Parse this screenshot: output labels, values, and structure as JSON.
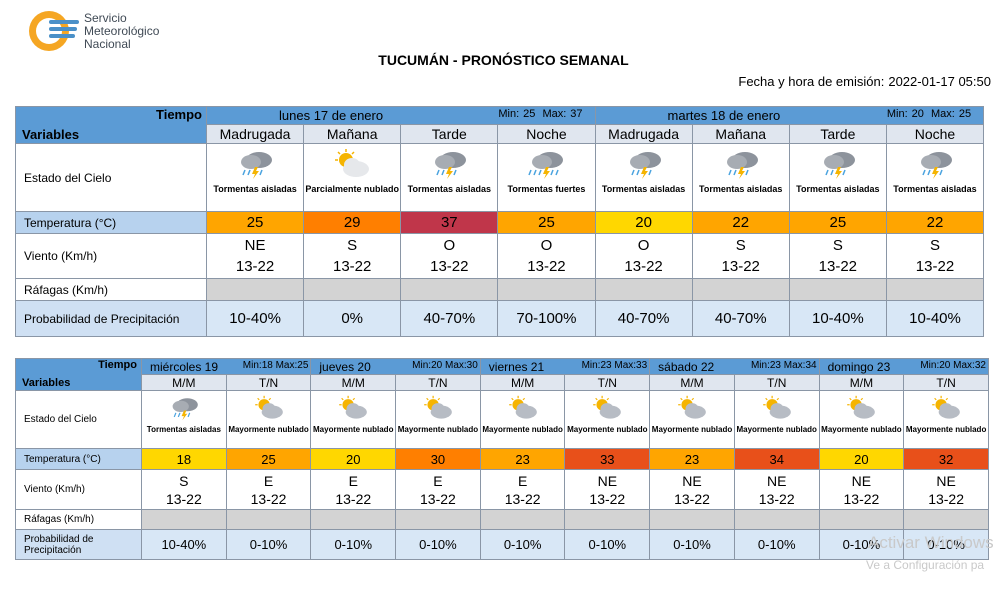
{
  "header": {
    "org_line1": "Servicio",
    "org_line2": "Meteorológico",
    "org_line3": "Nacional",
    "title": "TUCUMÁN - PRONÓSTICO SEMANAL",
    "issued_label": "Fecha y hora de emisión:",
    "issued_value": "2022-01-17 05:50"
  },
  "labels": {
    "tiempo": "Tiempo",
    "variables": "Variables",
    "sky": "Estado del Cielo",
    "temp": "Temperatura (°C)",
    "wind": "Viento (Km/h)",
    "gust": "Ráfagas (Km/h)",
    "prob": "Probabilidad de Precipitación",
    "min": "Min:",
    "max": "Max:"
  },
  "colors": {
    "t20": "#ffd700",
    "t22": "#ffa500",
    "t23": "#ffa500",
    "t25": "#ffa500",
    "t29": "#ff7f00",
    "t30": "#ff7f00",
    "t33": "#e8501a",
    "t34": "#e8501a",
    "t37": "#c0364a",
    "header": "#5b9bd5"
  },
  "week1": {
    "days": [
      {
        "name": "lunes 17 de enero",
        "min": "25",
        "max": "37",
        "periods": [
          {
            "label": "Madrugada",
            "icon": "storm-icon",
            "sky": "Tormentas aisladas",
            "temp": "25",
            "color": "#ffa500",
            "dir": "NE",
            "speed": "13-22",
            "prob": "10-40%"
          },
          {
            "label": "Mañana",
            "icon": "partly-cloudy-icon",
            "sky": "Parcialmente nublado",
            "temp": "29",
            "color": "#ff7f00",
            "dir": "S",
            "speed": "13-22",
            "prob": "0%"
          },
          {
            "label": "Tarde",
            "icon": "storm-icon",
            "sky": "Tormentas aisladas",
            "temp": "37",
            "color": "#c0364a",
            "dir": "O",
            "speed": "13-22",
            "prob": "40-70%"
          },
          {
            "label": "Noche",
            "icon": "strong-storm-icon",
            "sky": "Tormentas fuertes",
            "temp": "25",
            "color": "#ffa500",
            "dir": "O",
            "speed": "13-22",
            "prob": "70-100%"
          }
        ]
      },
      {
        "name": "martes 18 de enero",
        "min": "20",
        "max": "25",
        "periods": [
          {
            "label": "Madrugada",
            "icon": "storm-icon",
            "sky": "Tormentas aisladas",
            "temp": "20",
            "color": "#ffd700",
            "dir": "O",
            "speed": "13-22",
            "prob": "40-70%"
          },
          {
            "label": "Mañana",
            "icon": "storm-icon",
            "sky": "Tormentas aisladas",
            "temp": "22",
            "color": "#ffa500",
            "dir": "S",
            "speed": "13-22",
            "prob": "40-70%"
          },
          {
            "label": "Tarde",
            "icon": "storm-icon",
            "sky": "Tormentas aisladas",
            "temp": "25",
            "color": "#ffa500",
            "dir": "S",
            "speed": "13-22",
            "prob": "10-40%"
          },
          {
            "label": "Noche",
            "icon": "storm-icon",
            "sky": "Tormentas aisladas",
            "temp": "22",
            "color": "#ffa500",
            "dir": "S",
            "speed": "13-22",
            "prob": "10-40%"
          }
        ]
      }
    ]
  },
  "week2": {
    "days": [
      {
        "name": "miércoles 19",
        "min": "18",
        "max": "25",
        "periods": [
          {
            "label": "M/M",
            "icon": "storm-icon",
            "sky": "Tormentas aisladas",
            "temp": "18",
            "color": "#ffd700",
            "dir": "S",
            "speed": "13-22",
            "prob": "10-40%"
          },
          {
            "label": "T/N",
            "icon": "mostly-cloudy-icon",
            "sky": "Mayormente nublado",
            "temp": "25",
            "color": "#ffa500",
            "dir": "E",
            "speed": "13-22",
            "prob": "0-10%"
          }
        ]
      },
      {
        "name": "jueves 20",
        "min": "20",
        "max": "30",
        "periods": [
          {
            "label": "M/M",
            "icon": "mostly-cloudy-icon",
            "sky": "Mayormente nublado",
            "temp": "20",
            "color": "#ffd700",
            "dir": "E",
            "speed": "13-22",
            "prob": "0-10%"
          },
          {
            "label": "T/N",
            "icon": "mostly-cloudy-icon",
            "sky": "Mayormente nublado",
            "temp": "30",
            "color": "#ff7f00",
            "dir": "E",
            "speed": "13-22",
            "prob": "0-10%"
          }
        ]
      },
      {
        "name": "viernes 21",
        "min": "23",
        "max": "33",
        "periods": [
          {
            "label": "M/M",
            "icon": "mostly-cloudy-icon",
            "sky": "Mayormente nublado",
            "temp": "23",
            "color": "#ffa500",
            "dir": "E",
            "speed": "13-22",
            "prob": "0-10%"
          },
          {
            "label": "T/N",
            "icon": "mostly-cloudy-icon",
            "sky": "Mayormente nublado",
            "temp": "33",
            "color": "#e8501a",
            "dir": "NE",
            "speed": "13-22",
            "prob": "0-10%"
          }
        ]
      },
      {
        "name": "sábado 22",
        "min": "23",
        "max": "34",
        "periods": [
          {
            "label": "M/M",
            "icon": "mostly-cloudy-icon",
            "sky": "Mayormente nublado",
            "temp": "23",
            "color": "#ffa500",
            "dir": "NE",
            "speed": "13-22",
            "prob": "0-10%"
          },
          {
            "label": "T/N",
            "icon": "mostly-cloudy-icon",
            "sky": "Mayormente nublado",
            "temp": "34",
            "color": "#e8501a",
            "dir": "NE",
            "speed": "13-22",
            "prob": "0-10%"
          }
        ]
      },
      {
        "name": "domingo 23",
        "min": "20",
        "max": "32",
        "periods": [
          {
            "label": "M/M",
            "icon": "mostly-cloudy-icon",
            "sky": "Mayormente nublado",
            "temp": "20",
            "color": "#ffd700",
            "dir": "NE",
            "speed": "13-22",
            "prob": "0-10%"
          },
          {
            "label": "T/N",
            "icon": "mostly-cloudy-icon",
            "sky": "Mayormente nublado",
            "temp": "32",
            "color": "#e8501a",
            "dir": "NE",
            "speed": "13-22",
            "prob": "0-10%"
          }
        ]
      }
    ]
  },
  "watermark": {
    "line1": "Activar Windows",
    "line2": "Ve a Configuración pa"
  }
}
